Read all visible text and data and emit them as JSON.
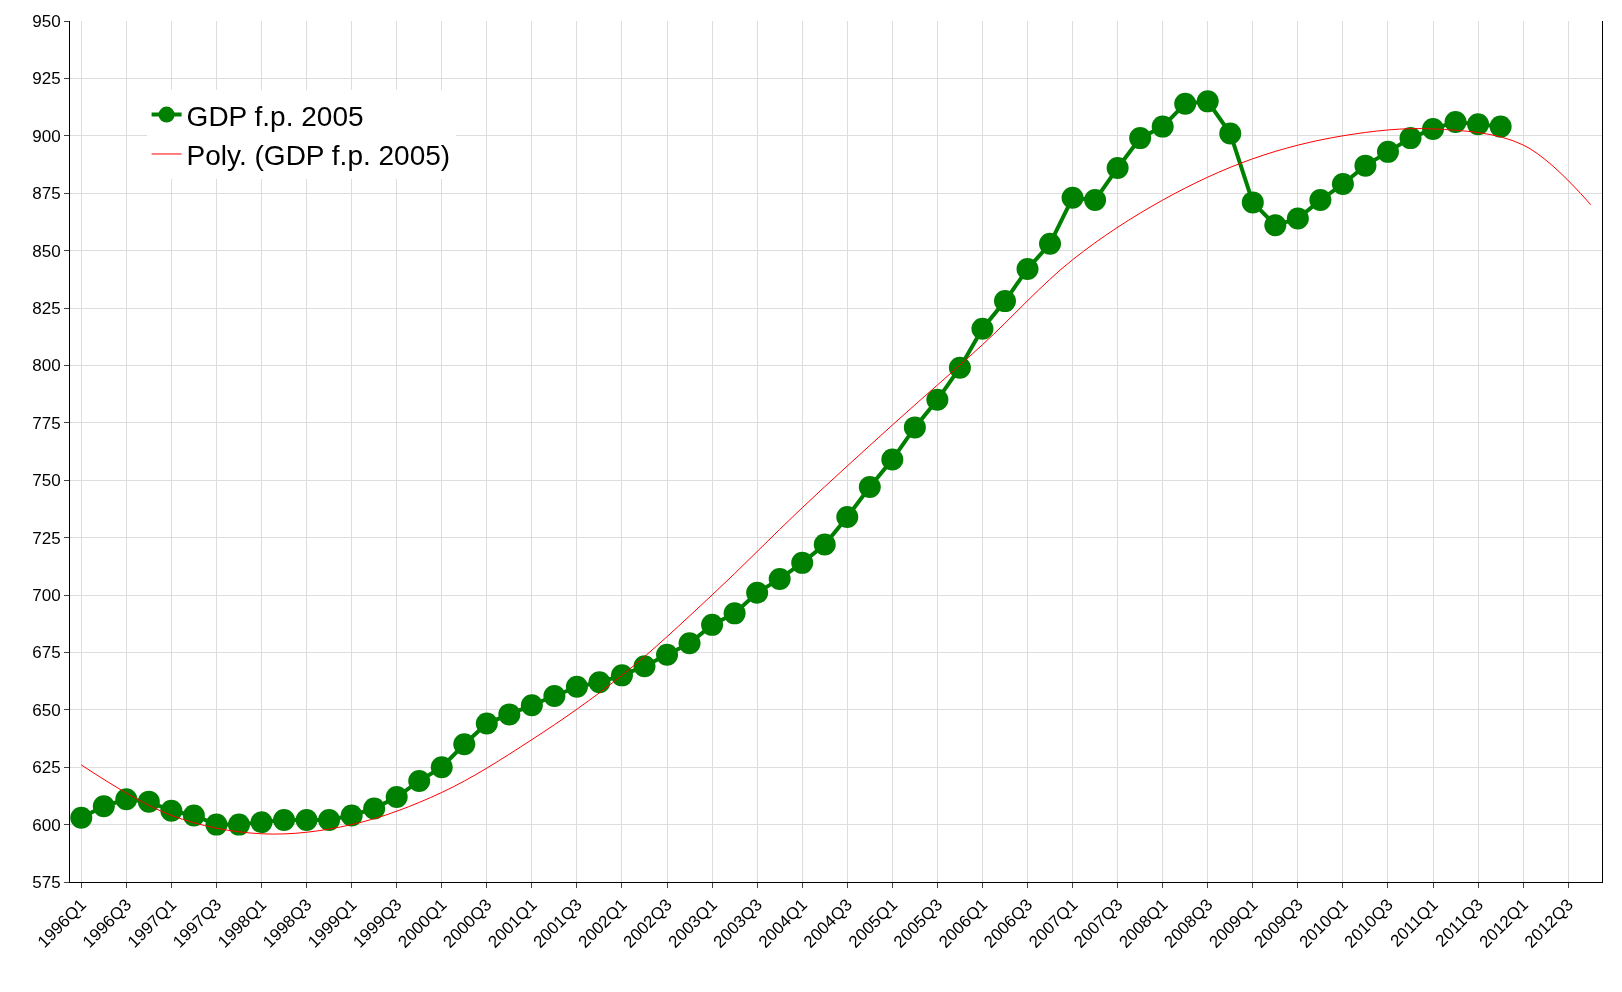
{
  "chart_data": {
    "type": "line",
    "categories": [
      "1996Q1",
      null,
      "1996Q3",
      null,
      "1997Q1",
      null,
      "1997Q3",
      null,
      "1998Q1",
      null,
      "1998Q3",
      null,
      "1999Q1",
      null,
      "1999Q3",
      null,
      "2000Q1",
      null,
      "2000Q3",
      null,
      "2001Q1",
      null,
      "2001Q3",
      null,
      "2002Q1",
      null,
      "2002Q3",
      null,
      "2003Q1",
      null,
      "2003Q3",
      null,
      "2004Q1",
      null,
      "2004Q3",
      null,
      "2005Q1",
      null,
      "2005Q3",
      null,
      "2006Q1",
      null,
      "2006Q3",
      null,
      "2007Q1",
      null,
      "2007Q3",
      null,
      "2008Q1",
      null,
      "2008Q3",
      null,
      "2009Q1",
      null,
      "2009Q3",
      null,
      "2010Q1",
      null,
      "2010Q3",
      null,
      "2011Q1",
      null,
      "2011Q3",
      null,
      "2012Q1",
      null,
      "2012Q3",
      null
    ],
    "series": [
      {
        "name": "GDP f.p. 2005",
        "color": "#008000",
        "marker": "circle",
        "values": [
          603,
          608,
          611,
          610,
          606,
          604,
          600,
          600,
          601,
          602,
          602,
          602,
          604,
          607,
          612,
          619,
          625,
          635,
          644,
          648,
          652,
          656,
          660,
          662,
          665,
          669,
          674,
          679,
          687,
          692,
          701,
          707,
          714,
          722,
          734,
          747,
          759,
          773,
          785,
          799,
          816,
          828,
          842,
          853,
          873,
          872,
          886,
          899,
          904,
          914,
          915,
          901,
          871,
          861,
          864,
          872,
          879,
          887,
          893,
          899,
          903,
          906,
          905,
          904,
          null,
          null,
          null,
          null
        ]
      },
      {
        "name": "Poly. (GDP f.p. 2005)",
        "color": "#ff0000",
        "marker": "none",
        "values": [
          626,
          null,
          null,
          null,
          604,
          null,
          null,
          null,
          596,
          null,
          null,
          null,
          600,
          null,
          null,
          null,
          614,
          null,
          null,
          null,
          637,
          null,
          null,
          null,
          665,
          null,
          null,
          null,
          700,
          null,
          null,
          null,
          738,
          null,
          null,
          null,
          774,
          null,
          null,
          null,
          809,
          null,
          null,
          null,
          846,
          null,
          null,
          null,
          872,
          null,
          null,
          null,
          890,
          null,
          null,
          null,
          900,
          null,
          null,
          null,
          903,
          null,
          null,
          null,
          896,
          null,
          null,
          870
        ]
      }
    ],
    "ylim": [
      575,
      950
    ],
    "yticks": [
      575,
      600,
      625,
      650,
      675,
      700,
      725,
      750,
      775,
      800,
      825,
      850,
      875,
      900,
      925,
      950
    ],
    "grid": true,
    "legend": "top left"
  }
}
